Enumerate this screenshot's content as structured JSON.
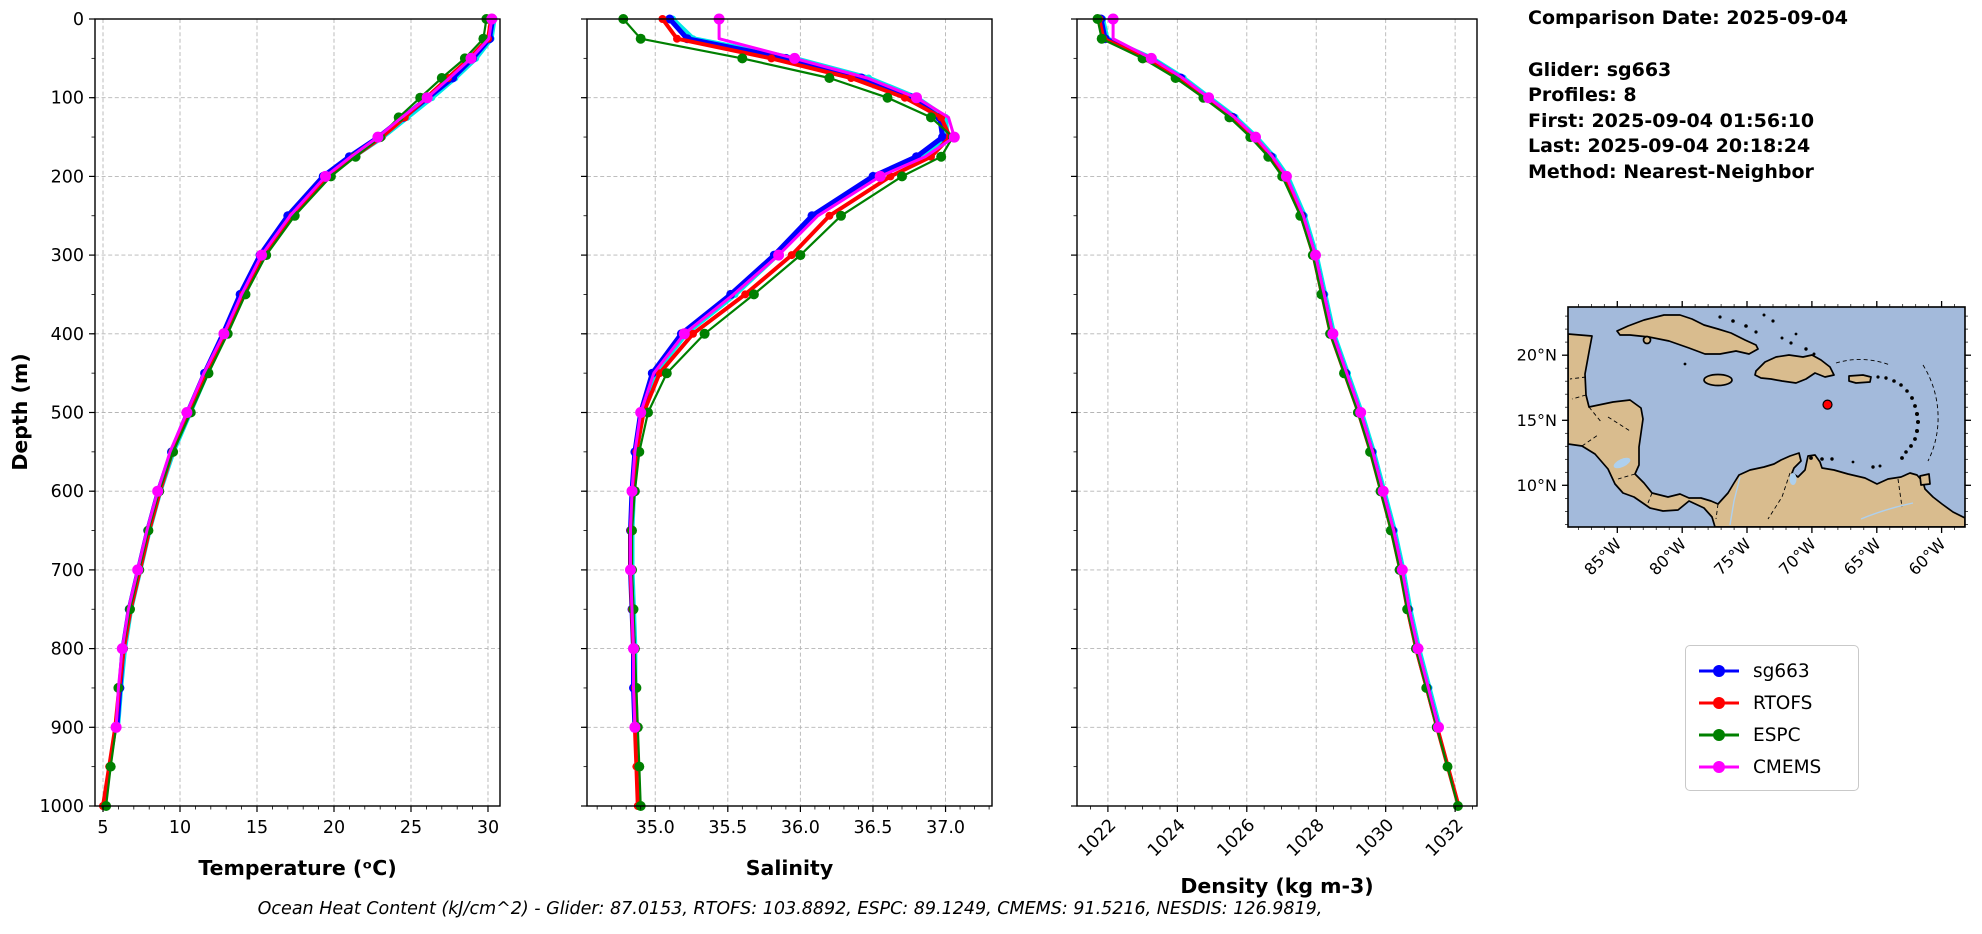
{
  "info_panel": {
    "date_line": "Comparison Date: 2025-09-04",
    "lines": [
      "Glider: sg663",
      "Profiles: 8",
      "First: 2025-09-04 01:56:10",
      "Last: 2025-09-04 20:18:24",
      "Method: Nearest-Neighbor"
    ]
  },
  "footer": {
    "ohc_text": "Ocean Heat Content (kJ/cm^2) - Glider: 87.0153,  RTOFS: 103.8892,  ESPC: 89.1249,  CMEMS: 91.5216,  NESDIS: 126.9819,"
  },
  "legend": {
    "items": [
      {
        "label": "sg663",
        "color": "#0000ff"
      },
      {
        "label": "RTOFS",
        "color": "#ff0000"
      },
      {
        "label": "ESPC",
        "color": "#008000"
      },
      {
        "label": "CMEMS",
        "color": "#ff00ff"
      }
    ]
  },
  "chart_data": {
    "type": "line",
    "note": "Vertical ocean profiles: y axis is depth (m) increasing downward, shared by all three panels.",
    "ylabel": "Depth (m)",
    "ylim": [
      0,
      1000
    ],
    "yticks": [
      0,
      100,
      200,
      300,
      400,
      500,
      600,
      700,
      800,
      900,
      1000
    ],
    "y_minor_step": 50,
    "grid": true,
    "depths": [
      0,
      25,
      50,
      75,
      100,
      125,
      150,
      175,
      200,
      250,
      300,
      350,
      400,
      450,
      500,
      550,
      600,
      650,
      700,
      750,
      800,
      850,
      900,
      950,
      1000
    ],
    "charts": [
      {
        "id": "temperature",
        "xlabel": "Temperature (ᵒC)",
        "xlim": [
          4.48,
          30.78
        ],
        "xticks": [
          5,
          10,
          15,
          20,
          25,
          30
        ],
        "xtick_labels": [
          "5",
          "10",
          "15",
          "20",
          "25",
          "30"
        ],
        "x_minor_step": 1,
        "rotate_xticks": false,
        "show_depth_labels": true,
        "series": [
          {
            "name": "glider-raw",
            "color": "#00e8e8",
            "in_legend": false,
            "values": [
              30.4,
              30.2,
              29.2,
              27.85,
              26.35,
              24.75,
              23.15,
              21.25,
              19.5,
              17.2,
              15.4,
              14.1,
              12.95,
              11.75,
              10.65,
              9.55,
              8.7,
              8.0,
              7.4,
              6.8,
              6.4,
              6.15,
              5.95,
              null,
              null
            ]
          },
          {
            "name": "sg663",
            "color": "#0000ff",
            "in_legend": true,
            "values": [
              30.3,
              30.1,
              29.0,
              27.7,
              26.1,
              24.5,
              22.9,
              21.0,
              19.3,
              17.0,
              15.2,
              13.9,
              12.8,
              11.6,
              10.5,
              9.45,
              8.6,
              7.9,
              7.3,
              6.7,
              6.3,
              6.1,
              5.9,
              null,
              null
            ]
          },
          {
            "name": "RTOFS",
            "color": "#ff0000",
            "in_legend": true,
            "values": [
              30.2,
              30.0,
              28.8,
              27.4,
              26.0,
              24.6,
              23.1,
              21.3,
              19.6,
              17.3,
              15.45,
              14.1,
              13.0,
              11.75,
              10.6,
              9.5,
              8.7,
              8.0,
              7.4,
              6.8,
              6.35,
              6.05,
              5.8,
              5.4,
              5.0
            ]
          },
          {
            "name": "ESPC",
            "color": "#008000",
            "in_legend": true,
            "values": [
              29.9,
              29.7,
              28.5,
              27.0,
              25.6,
              24.2,
              23.0,
              21.4,
              19.8,
              17.45,
              15.6,
              14.25,
              13.1,
              11.85,
              10.7,
              9.55,
              8.65,
              7.95,
              7.35,
              6.75,
              6.3,
              6.0,
              5.85,
              5.5,
              5.2
            ]
          },
          {
            "name": "CMEMS",
            "color": "#ff00ff",
            "in_legend": true,
            "values": [
              30.25,
              30.05,
              28.9,
              27.5,
              26.05,
              24.4,
              22.85,
              21.1,
              19.45,
              17.15,
              15.3,
              14.0,
              12.85,
              11.55,
              10.45,
              9.35,
              8.55,
              7.85,
              7.25,
              6.65,
              6.25,
              6.0,
              5.85,
              null,
              null
            ]
          }
        ]
      },
      {
        "id": "salinity",
        "xlabel": "Salinity",
        "xlim": [
          34.53,
          37.32
        ],
        "xticks": [
          35.0,
          35.5,
          36.0,
          36.5,
          37.0
        ],
        "xtick_labels": [
          "35.0",
          "35.5",
          "36.0",
          "36.5",
          "37.0"
        ],
        "x_minor_step": 0.1,
        "rotate_xticks": false,
        "show_depth_labels": false,
        "series": [
          {
            "name": "glider-raw",
            "color": "#00e8e8",
            "in_legend": false,
            "values": [
              35.12,
              35.26,
              35.96,
              36.47,
              36.8,
              37.0,
              37.01,
              36.83,
              36.53,
              36.1,
              35.84,
              35.55,
              35.21,
              35.0,
              34.91,
              34.87,
              34.85,
              34.84,
              34.84,
              34.85,
              34.86,
              34.86,
              34.87,
              null,
              null
            ]
          },
          {
            "name": "sg663",
            "color": "#0000ff",
            "in_legend": true,
            "values": [
              35.1,
              35.22,
              35.9,
              36.42,
              36.76,
              36.96,
              36.98,
              36.8,
              36.5,
              36.08,
              35.82,
              35.52,
              35.18,
              34.98,
              34.9,
              34.86,
              34.84,
              34.83,
              34.83,
              34.84,
              34.85,
              34.85,
              34.86,
              null,
              null
            ]
          },
          {
            "name": "RTOFS",
            "color": "#ff0000",
            "in_legend": true,
            "values": [
              35.05,
              35.15,
              35.8,
              36.35,
              36.72,
              36.97,
              37.03,
              36.9,
              36.62,
              36.2,
              35.94,
              35.62,
              35.26,
              35.03,
              34.92,
              34.87,
              34.85,
              34.83,
              34.83,
              34.84,
              34.85,
              34.86,
              34.86,
              34.87,
              34.88
            ]
          },
          {
            "name": "ESPC",
            "color": "#008000",
            "in_legend": true,
            "values": [
              34.78,
              34.9,
              35.6,
              36.2,
              36.6,
              36.9,
              37.05,
              36.97,
              36.7,
              36.28,
              36.0,
              35.68,
              35.34,
              35.08,
              34.95,
              34.89,
              34.86,
              34.84,
              34.84,
              34.85,
              34.86,
              34.87,
              34.88,
              34.89,
              34.9
            ]
          },
          {
            "name": "CMEMS",
            "color": "#ff00ff",
            "in_legend": true,
            "values": [
              35.44,
              35.44,
              35.96,
              36.46,
              36.8,
              37.02,
              37.06,
              36.86,
              36.55,
              36.12,
              35.85,
              35.54,
              35.2,
              34.99,
              34.9,
              34.86,
              34.84,
              34.83,
              34.83,
              34.84,
              34.85,
              34.85,
              34.86,
              null,
              null
            ]
          }
        ]
      },
      {
        "id": "density",
        "xlabel": "Density (kg m-3)",
        "xlim": [
          1021.11,
          1032.63
        ],
        "xticks": [
          1022,
          1024,
          1026,
          1028,
          1030,
          1032
        ],
        "xtick_labels": [
          "1022",
          "1024",
          "1026",
          "1028",
          "1030",
          "1032"
        ],
        "x_minor_step": 0.5,
        "rotate_xticks": true,
        "show_depth_labels": false,
        "series": [
          {
            "name": "glider-raw",
            "color": "#00e8e8",
            "in_legend": false,
            "values": [
              1021.85,
              1021.97,
              1023.27,
              1024.17,
              1024.92,
              1025.67,
              1026.27,
              1026.77,
              1027.17,
              1027.66,
              1028.0,
              1028.25,
              1028.5,
              1028.9,
              1029.3,
              1029.65,
              1029.95,
              1030.25,
              1030.5,
              1030.7,
              1030.95,
              1031.25,
              1031.55,
              null,
              null
            ]
          },
          {
            "name": "sg663",
            "color": "#0000ff",
            "in_legend": true,
            "values": [
              1021.8,
              1021.92,
              1023.2,
              1024.1,
              1024.85,
              1025.6,
              1026.2,
              1026.7,
              1027.1,
              1027.6,
              1027.95,
              1028.2,
              1028.45,
              1028.85,
              1029.25,
              1029.6,
              1029.9,
              1030.2,
              1030.45,
              1030.65,
              1030.9,
              1031.2,
              1031.5,
              null,
              null
            ]
          },
          {
            "name": "RTOFS",
            "color": "#ff0000",
            "in_legend": true,
            "values": [
              1021.75,
              1021.87,
              1023.1,
              1024.0,
              1024.8,
              1025.55,
              1026.15,
              1026.66,
              1027.06,
              1027.57,
              1027.92,
              1028.17,
              1028.42,
              1028.82,
              1029.22,
              1029.57,
              1029.87,
              1030.17,
              1030.42,
              1030.63,
              1030.88,
              1031.18,
              1031.48,
              1031.79,
              1032.1
            ]
          },
          {
            "name": "ESPC",
            "color": "#008000",
            "in_legend": true,
            "values": [
              1021.7,
              1021.82,
              1023.0,
              1023.95,
              1024.75,
              1025.5,
              1026.1,
              1026.62,
              1027.02,
              1027.54,
              1027.9,
              1028.15,
              1028.4,
              1028.8,
              1029.2,
              1029.55,
              1029.85,
              1030.15,
              1030.4,
              1030.62,
              1030.87,
              1031.17,
              1031.47,
              1031.78,
              1032.08
            ]
          },
          {
            "name": "CMEMS",
            "color": "#ff00ff",
            "in_legend": true,
            "values": [
              1022.15,
              1022.15,
              1023.25,
              1024.15,
              1024.9,
              1025.65,
              1026.25,
              1026.74,
              1027.14,
              1027.63,
              1027.98,
              1028.23,
              1028.48,
              1028.88,
              1029.28,
              1029.63,
              1029.93,
              1030.23,
              1030.48,
              1030.68,
              1030.93,
              1031.23,
              1031.52,
              null,
              null
            ]
          }
        ]
      }
    ]
  },
  "map": {
    "extent": {
      "lon_min": -88.8,
      "lon_max": -58.2,
      "lat_min": 6.8,
      "lat_max": 23.7
    },
    "lon_ticks": [
      {
        "value": -85,
        "label": "85°W"
      },
      {
        "value": -80,
        "label": "80°W"
      },
      {
        "value": -75,
        "label": "75°W"
      },
      {
        "value": -70,
        "label": "70°W"
      },
      {
        "value": -65,
        "label": "65°W"
      },
      {
        "value": -60,
        "label": "60°W"
      }
    ],
    "lat_ticks": [
      {
        "value": 20,
        "label": "20°N"
      },
      {
        "value": 15,
        "label": "15°N"
      },
      {
        "value": 10,
        "label": "10°N"
      }
    ],
    "marker": {
      "lon": -68.8,
      "lat": 16.2,
      "color": "#ff0000"
    },
    "colors": {
      "ocean": "#a3badb",
      "land": "#d9bc8e",
      "coast": "#000000",
      "water": "#aed0ee"
    }
  }
}
